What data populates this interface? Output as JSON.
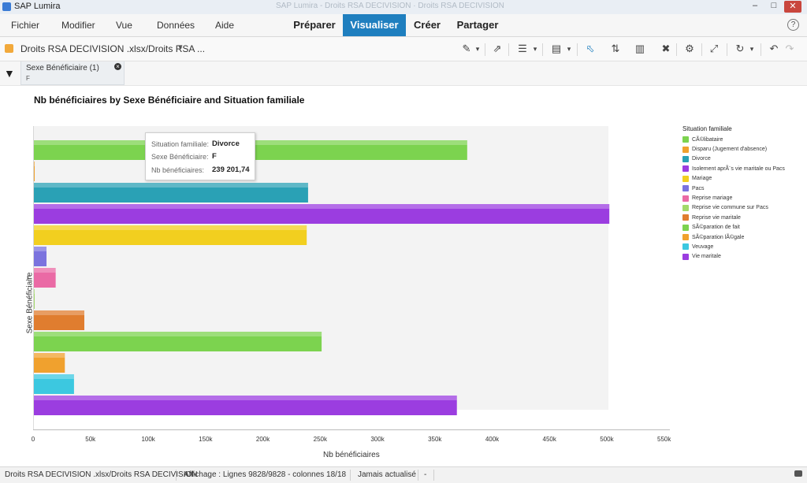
{
  "window": {
    "title": "SAP Lumira",
    "blurred_title": "SAP Lumira - Droits RSA DECIVISION · Droits RSA DECIVISION"
  },
  "menu": {
    "items": [
      "Fichier",
      "Modifier",
      "Vue",
      "Données",
      "Aide"
    ]
  },
  "modes": {
    "items": [
      "Préparer",
      "Visualiser",
      "Créer",
      "Partager"
    ],
    "active": "Visualiser"
  },
  "help_label": "?",
  "dataset": {
    "name": "Droits RSA DECIVISION .xlsx/Droits RSA ..."
  },
  "filter": {
    "title": "Sexe Bénéficiaire (1)",
    "value": "F"
  },
  "chart_data": {
    "type": "bar",
    "orientation": "horizontal",
    "title": "Nb bénéficiaires by Sexe Bénéficiaire and Situation familiale",
    "xlabel": "Nb bénéficiaires",
    "ylabel": "Sexe Bénéficiaire",
    "category": "F",
    "xlim": [
      0,
      550000
    ],
    "ticks": [
      "0",
      "50k",
      "100k",
      "150k",
      "200k",
      "250k",
      "300k",
      "350k",
      "400k",
      "450k",
      "500k",
      "550k"
    ],
    "legend_title": "Situation familiale",
    "legend_position": "right",
    "series": [
      {
        "name": "CÃ©libataire",
        "value": 378000,
        "color": "#7cd34f"
      },
      {
        "name": "Disparu (Jugement d'absence)",
        "value": 700,
        "color": "#f0a12e"
      },
      {
        "name": "Divorce",
        "value": 239201.74,
        "color": "#2aa1b5"
      },
      {
        "name": "Isolement aprÃ¨s vie maritale ou Pacs",
        "value": 502000,
        "color": "#9b3de0"
      },
      {
        "name": "Mariage",
        "value": 238000,
        "color": "#f2cf1f"
      },
      {
        "name": "Pacs",
        "value": 11000,
        "color": "#7b73de"
      },
      {
        "name": "Reprise mariage",
        "value": 19000,
        "color": "#ea6aa5"
      },
      {
        "name": "Reprise vie commune sur Pacs",
        "value": 300,
        "color": "#a3d96a"
      },
      {
        "name": "Reprise vie maritale",
        "value": 44000,
        "color": "#e07d2f"
      },
      {
        "name": "SÃ©paration de fait",
        "value": 251000,
        "color": "#7cd34f"
      },
      {
        "name": "SÃ©paration lÃ©gale",
        "value": 27000,
        "color": "#f0a12e"
      },
      {
        "name": "Veuvage",
        "value": 35000,
        "color": "#3cc8e0"
      },
      {
        "name": "Vie maritale",
        "value": 369000,
        "color": "#9b3de0"
      }
    ]
  },
  "tooltip": {
    "row1_label": "Situation familiale:",
    "row1_value": "Divorce",
    "row2_label": "Sexe Bénéficiaire:",
    "row2_value": "F",
    "row3_label": "Nb bénéficiaires:",
    "row3_value": "239 201,74"
  },
  "status": {
    "dataset": "Droits RSA DECIVISION .xlsx/Droits RSA DECIVISION",
    "display": "Affichage : Lignes 9828/9828 - colonnes 18/18",
    "refresh": "Jamais actualisé",
    "dash": "-"
  }
}
